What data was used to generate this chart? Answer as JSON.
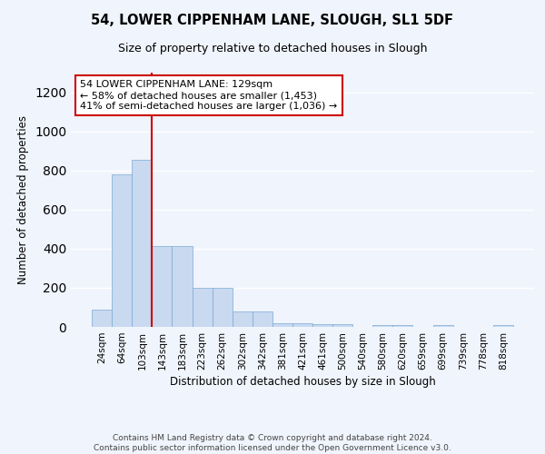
{
  "title": "54, LOWER CIPPENHAM LANE, SLOUGH, SL1 5DF",
  "subtitle": "Size of property relative to detached houses in Slough",
  "xlabel": "Distribution of detached houses by size in Slough",
  "ylabel": "Number of detached properties",
  "bar_color": "#c9d9f0",
  "bar_edge_color": "#7aaad4",
  "background_color": "#f0f4fc",
  "grid_color": "#ffffff",
  "categories": [
    "24sqm",
    "64sqm",
    "103sqm",
    "143sqm",
    "183sqm",
    "223sqm",
    "262sqm",
    "302sqm",
    "342sqm",
    "381sqm",
    "421sqm",
    "461sqm",
    "500sqm",
    "540sqm",
    "580sqm",
    "620sqm",
    "659sqm",
    "699sqm",
    "739sqm",
    "778sqm",
    "818sqm"
  ],
  "values": [
    90,
    780,
    855,
    415,
    415,
    200,
    200,
    80,
    80,
    20,
    20,
    15,
    15,
    0,
    10,
    10,
    0,
    10,
    0,
    0,
    10
  ],
  "ylim": [
    0,
    1300
  ],
  "yticks": [
    0,
    200,
    400,
    600,
    800,
    1000,
    1200
  ],
  "property_line_color": "#cc0000",
  "annotation_text": "54 LOWER CIPPENHAM LANE: 129sqm\n← 58% of detached houses are smaller (1,453)\n41% of semi-detached houses are larger (1,036) →",
  "annotation_box_color": "#ffffff",
  "annotation_box_edge_color": "#cc0000",
  "footer_text": "Contains HM Land Registry data © Crown copyright and database right 2024.\nContains public sector information licensed under the Open Government Licence v3.0."
}
